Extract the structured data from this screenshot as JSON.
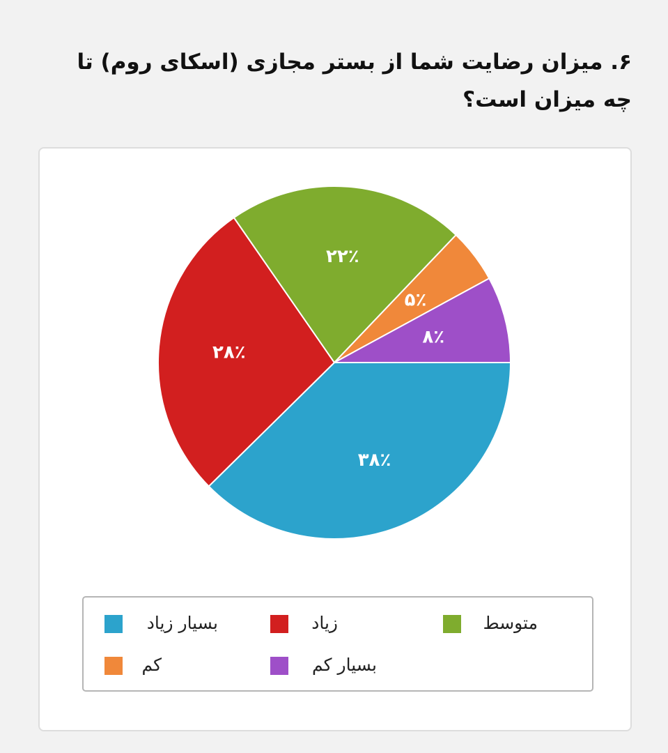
{
  "chart_data": {
    "type": "pie",
    "title": "۶. میزان رضایت شما از بستر مجازی (اسکای روم) تا چه میزان است؟",
    "categories": [
      "بسیار زیاد",
      "زیاد",
      "متوسط",
      "کم",
      "بسیار کم"
    ],
    "values": [
      38,
      28,
      22,
      5,
      8
    ],
    "value_labels": [
      "۳۸٪",
      "۲۸٪",
      "۲۲٪",
      "۵٪",
      "۸٪"
    ],
    "colors": [
      "#2ca3cc",
      "#d21f1f",
      "#7fac2e",
      "#f0883a",
      "#9e4fc8"
    ]
  }
}
